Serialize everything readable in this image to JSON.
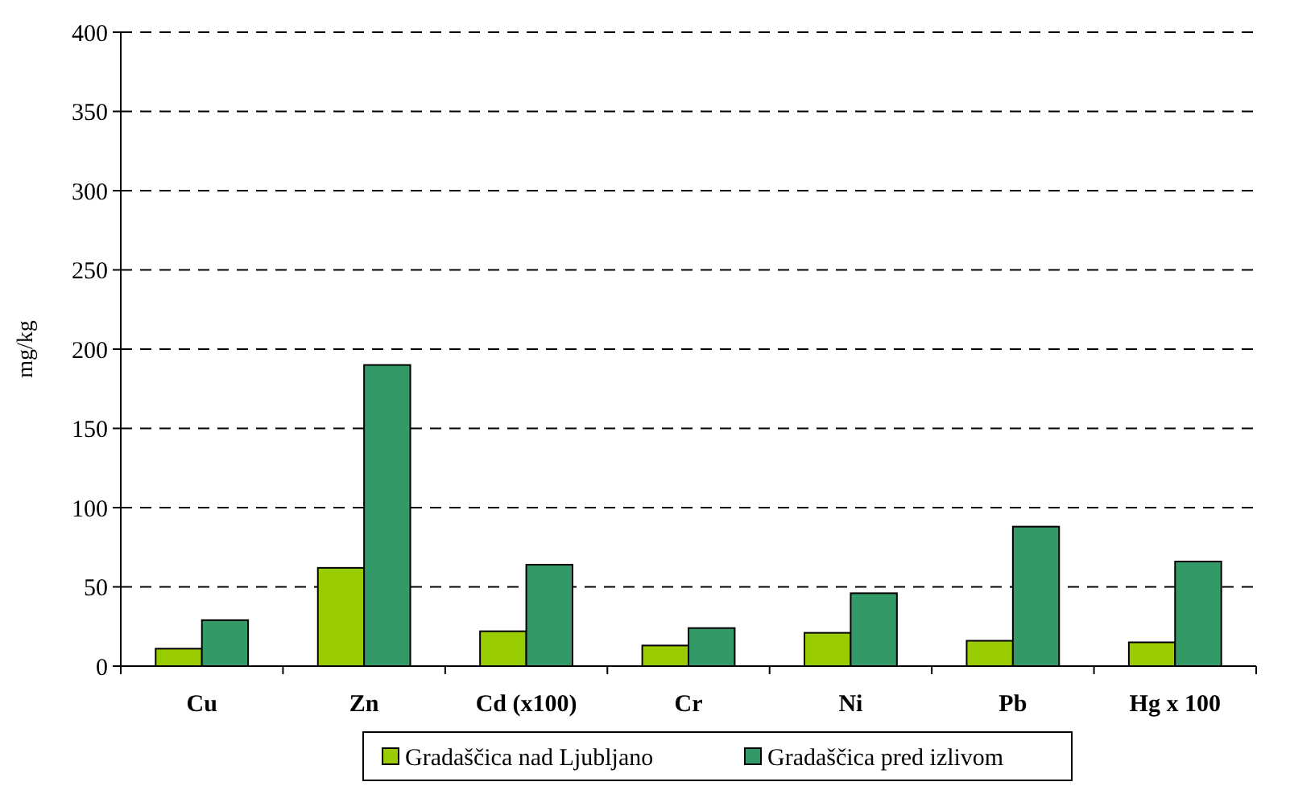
{
  "chart_data": {
    "type": "bar",
    "ylabel": "mg/kg",
    "categories": [
      "Cu",
      "Zn",
      "Cd (x100)",
      "Cr",
      "Ni",
      "Pb",
      "Hg x 100"
    ],
    "series": [
      {
        "name": "Gradaščica nad Ljubljano",
        "color": "#99cc00",
        "values": [
          11,
          62,
          22,
          13,
          21,
          16,
          15
        ]
      },
      {
        "name": "Gradaščica pred izlivom",
        "color": "#339966",
        "values": [
          29,
          190,
          64,
          24,
          46,
          88,
          66
        ]
      }
    ],
    "ylim": [
      0,
      400
    ],
    "yticks": [
      0,
      50,
      100,
      150,
      200,
      250,
      300,
      350,
      400
    ],
    "grid": "y",
    "legend": "bottom"
  }
}
